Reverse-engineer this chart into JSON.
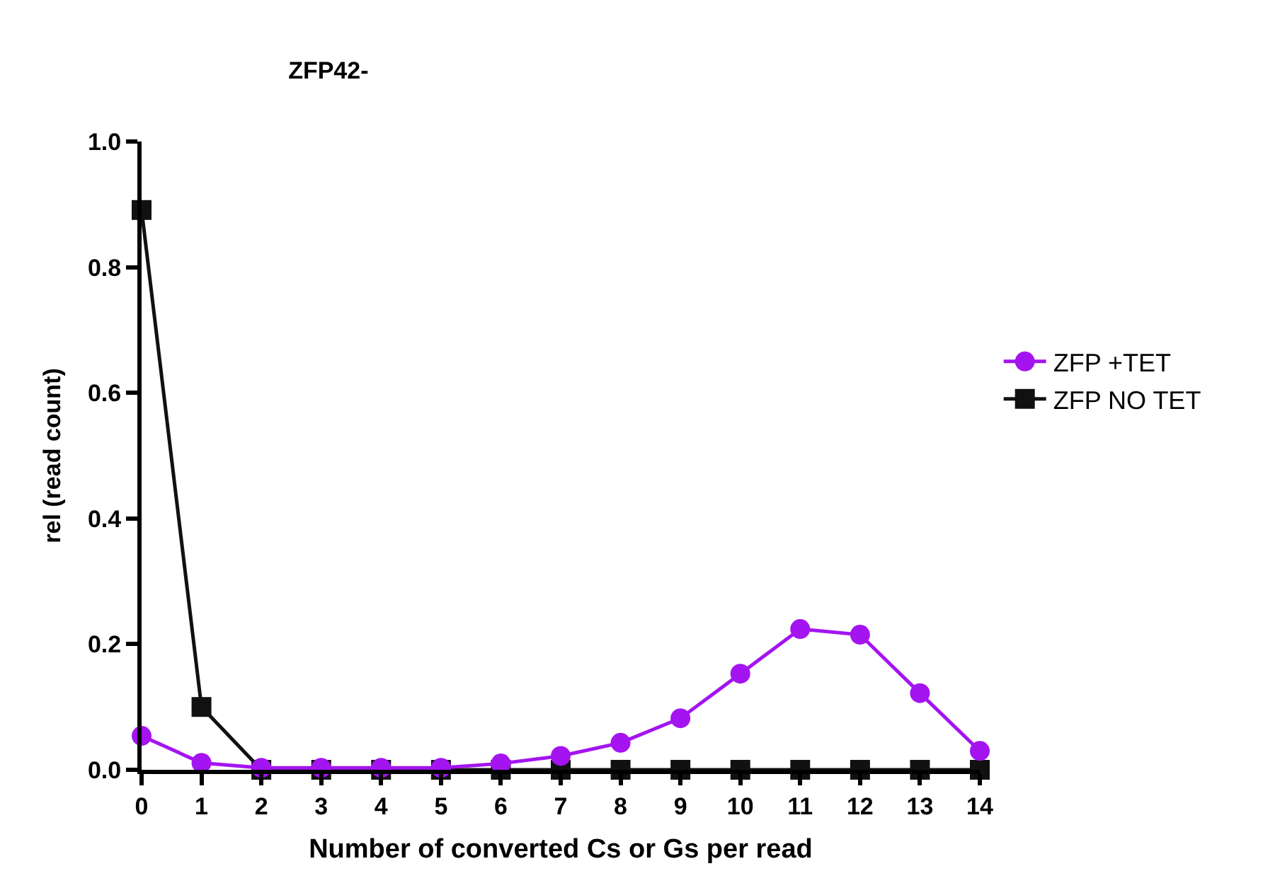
{
  "chart_data": {
    "type": "line",
    "title": "ZFP42-",
    "xlabel": "Number of converted Cs or Gs per read",
    "ylabel": "rel (read count)",
    "x": [
      0,
      1,
      2,
      3,
      4,
      5,
      6,
      7,
      8,
      9,
      10,
      11,
      12,
      13,
      14
    ],
    "series": [
      {
        "name": "ZFP +TET",
        "color": "#a414f0",
        "marker": "circle",
        "values": [
          0.054,
          0.011,
          0.003,
          0.003,
          0.003,
          0.003,
          0.01,
          0.022,
          0.043,
          0.082,
          0.153,
          0.224,
          0.215,
          0.122,
          0.03
        ]
      },
      {
        "name": "ZFP NO TET",
        "color": "#111111",
        "marker": "square",
        "values": [
          0.891,
          0.1,
          0,
          0,
          0,
          0,
          0,
          0,
          0,
          0,
          0,
          0,
          0,
          0,
          0
        ]
      }
    ],
    "xlim": [
      0,
      14
    ],
    "xticks": [
      0,
      1,
      2,
      3,
      4,
      5,
      6,
      7,
      8,
      9,
      10,
      11,
      12,
      13,
      14
    ],
    "ylim": [
      0,
      1.0
    ],
    "yticks": [
      {
        "value": 0,
        "label": "0.0"
      },
      {
        "value": 0.2,
        "label": "0.2"
      },
      {
        "value": 0.4,
        "label": "0.4"
      },
      {
        "value": 0.6,
        "label": "0.6"
      },
      {
        "value": 0.8,
        "label": "0.8"
      },
      {
        "value": 1.0,
        "label": "1.0"
      }
    ],
    "legend": "right",
    "line_style": "solid"
  }
}
